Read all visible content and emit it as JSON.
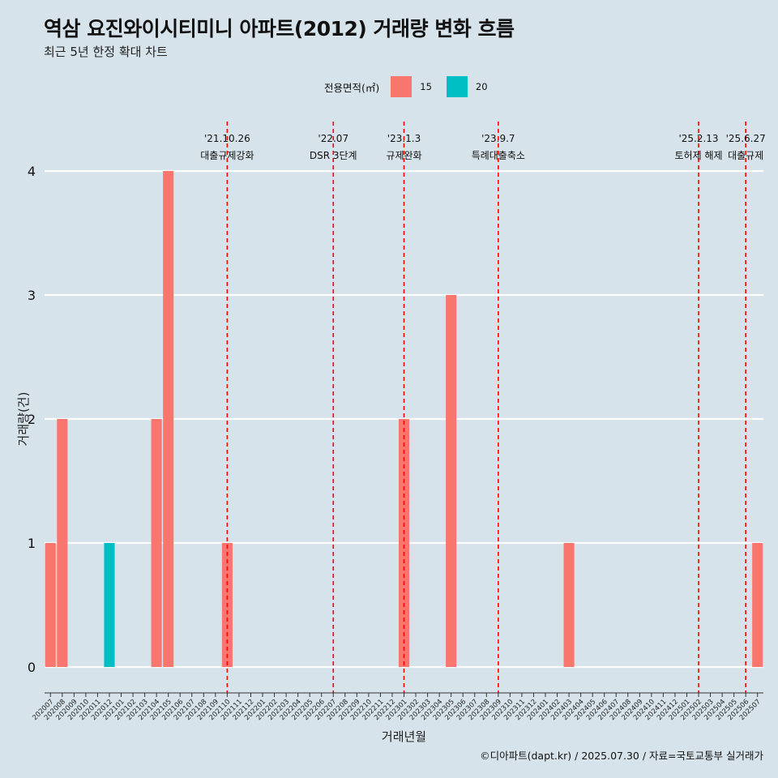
{
  "title": "역삼 요진와이시티미니 아파트(2012) 거래량 변화 흐름",
  "subtitle": "최근 5년 한정 확대 차트",
  "caption": "©디아파트(dapt.kr) / 2025.07.30 / 자료=국토교통부 실거래가",
  "legend": {
    "title": "전용면적(㎡)",
    "items": [
      {
        "label": "15",
        "color": "#f8766d"
      },
      {
        "label": "20",
        "color": "#00bfc4"
      }
    ]
  },
  "chart_data": {
    "type": "bar",
    "title": "역삼 요진와이시티미니 아파트(2012) 거래량 변화 흐름",
    "xlabel": "거래년월",
    "ylabel": "거래량(건)",
    "ylim": [
      0,
      4
    ],
    "yticks": [
      0,
      1,
      2,
      3,
      4
    ],
    "grid": true,
    "legend_position": "top",
    "categories": [
      "202007",
      "202008",
      "202009",
      "202010",
      "202011",
      "202012",
      "202101",
      "202102",
      "202103",
      "202104",
      "202105",
      "202106",
      "202107",
      "202108",
      "202109",
      "202110",
      "202111",
      "202112",
      "202201",
      "202202",
      "202203",
      "202204",
      "202205",
      "202206",
      "202207",
      "202208",
      "202209",
      "202210",
      "202211",
      "202212",
      "202301",
      "202302",
      "202303",
      "202304",
      "202305",
      "202306",
      "202307",
      "202308",
      "202309",
      "202310",
      "202311",
      "202312",
      "202401",
      "202402",
      "202403",
      "202404",
      "202405",
      "202406",
      "202407",
      "202408",
      "202409",
      "202410",
      "202411",
      "202412",
      "202501",
      "202502",
      "202503",
      "202504",
      "202505",
      "202506",
      "202507"
    ],
    "series": [
      {
        "name": "15",
        "color": "#f8766d",
        "points": [
          {
            "x": "202007",
            "y": 1
          },
          {
            "x": "202008",
            "y": 2
          },
          {
            "x": "202104",
            "y": 2
          },
          {
            "x": "202105",
            "y": 4
          },
          {
            "x": "202110",
            "y": 1
          },
          {
            "x": "202301",
            "y": 2
          },
          {
            "x": "202305",
            "y": 3
          },
          {
            "x": "202403",
            "y": 1
          },
          {
            "x": "202507",
            "y": 1
          }
        ]
      },
      {
        "name": "20",
        "color": "#00bfc4",
        "points": [
          {
            "x": "202012",
            "y": 1
          }
        ]
      }
    ],
    "annotations": [
      {
        "x": "202110",
        "date": "'21.10.26",
        "label": "대출규제강화"
      },
      {
        "x": "202207",
        "date": "'22.07",
        "label": "DSR 3단계"
      },
      {
        "x": "202301",
        "date": "'23.1.3",
        "label": "규제완화"
      },
      {
        "x": "202309",
        "date": "'23.9.7",
        "label": "특례대출축소"
      },
      {
        "x": "202502",
        "date": "'25.2.13",
        "label": "토허제 해제"
      },
      {
        "x": "202506",
        "date": "'25.6.27",
        "label": "대출규제"
      }
    ]
  }
}
